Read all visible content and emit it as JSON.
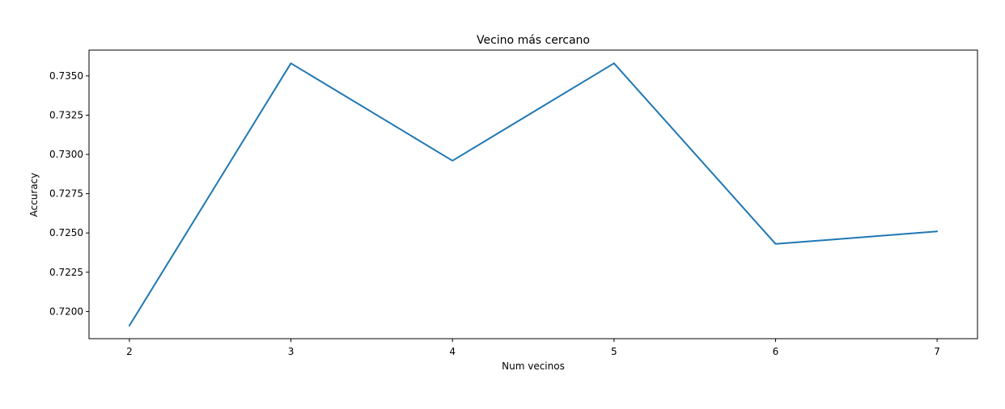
{
  "chart_data": {
    "type": "line",
    "title": "Vecino más cercano",
    "xlabel": "Num vecinos",
    "ylabel": "Accuracy",
    "x": [
      2,
      3,
      4,
      5,
      6,
      7
    ],
    "series": [
      {
        "values": [
          0.7191,
          0.7358,
          0.7296,
          0.7358,
          0.7243,
          0.7251
        ],
        "color": "#1f77b4"
      }
    ],
    "xticks": [
      "2",
      "3",
      "4",
      "5",
      "6",
      "7"
    ],
    "yticks": [
      "0.7200",
      "0.7225",
      "0.7250",
      "0.7275",
      "0.7300",
      "0.7325",
      "0.7350"
    ],
    "xlim": [
      1.75,
      7.25
    ],
    "ylim": [
      0.71827,
      0.73664
    ],
    "grid": false,
    "legend": "none"
  }
}
